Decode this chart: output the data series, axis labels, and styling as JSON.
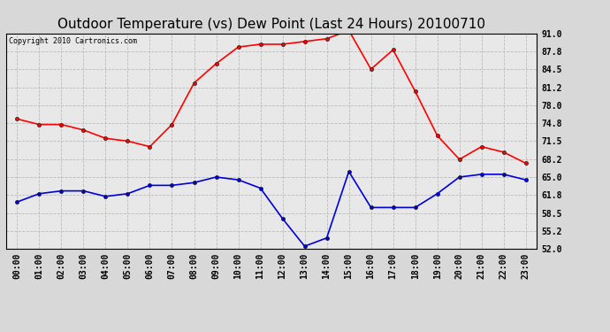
{
  "title": "Outdoor Temperature (vs) Dew Point (Last 24 Hours) 20100710",
  "copyright": "Copyright 2010 Cartronics.com",
  "x_labels": [
    "00:00",
    "01:00",
    "02:00",
    "03:00",
    "04:00",
    "05:00",
    "06:00",
    "07:00",
    "08:00",
    "09:00",
    "10:00",
    "11:00",
    "12:00",
    "13:00",
    "14:00",
    "15:00",
    "16:00",
    "17:00",
    "18:00",
    "19:00",
    "20:00",
    "21:00",
    "22:00",
    "23:00"
  ],
  "temp_red": [
    75.5,
    74.5,
    74.5,
    73.5,
    72.0,
    71.5,
    70.5,
    74.5,
    82.0,
    85.5,
    88.5,
    89.0,
    89.0,
    89.5,
    90.0,
    91.5,
    84.5,
    88.0,
    80.5,
    72.5,
    68.2,
    70.5,
    69.5,
    67.5
  ],
  "dew_blue": [
    60.5,
    62.0,
    62.5,
    62.5,
    61.5,
    62.0,
    63.5,
    63.5,
    64.0,
    65.0,
    64.5,
    63.0,
    57.5,
    52.5,
    54.0,
    66.0,
    59.5,
    59.5,
    59.5,
    62.0,
    65.0,
    65.5,
    65.5,
    64.5
  ],
  "ylim": [
    52.0,
    91.0
  ],
  "yticks": [
    52.0,
    55.2,
    58.5,
    61.8,
    65.0,
    68.2,
    71.5,
    74.8,
    78.0,
    81.2,
    84.5,
    87.8,
    91.0
  ],
  "fig_bg": "#d8d8d8",
  "plot_bg": "#e8e8e8",
  "red_color": "#ff0000",
  "blue_color": "#0000dd",
  "grid_color": "#bbbbbb",
  "title_fontsize": 11,
  "copyright_fontsize": 6,
  "tick_fontsize": 7,
  "ytick_fontsize": 7
}
